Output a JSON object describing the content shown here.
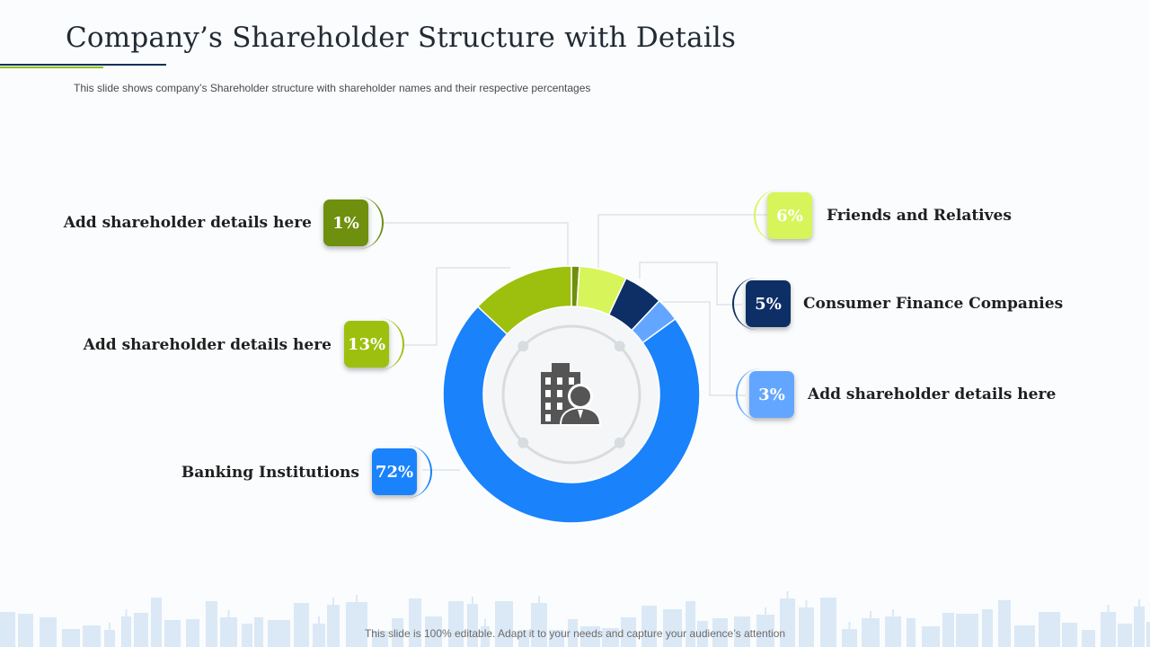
{
  "page": {
    "title": "Company’s Shareholder Structure with Details",
    "subtitle": "This slide shows company’s Shareholder  structure with shareholder names and their respective percentages",
    "footer": "This slide is 100% editable. Adapt it to your needs and capture your audience’s attention"
  },
  "icons": {
    "center": "building-person-icon",
    "background": "city-skyline"
  },
  "colors": {
    "title": "#222a33",
    "accent_dark": "#0f2f5c",
    "accent_green": "#8fbf1a",
    "donut_inner": "#f4f6f8",
    "ring": "#d9dcdf",
    "icon": "#555555",
    "skyline": "#dbe8f6"
  },
  "chart_data": {
    "type": "pie",
    "style": "donut",
    "unit": "%",
    "slices": [
      {
        "id": "s1",
        "label": "Add shareholder details here",
        "value": 1,
        "display": "1%",
        "color": "#6f8f0f",
        "text_color": "#ffffff"
      },
      {
        "id": "s2",
        "label": "Friends and Relatives",
        "value": 6,
        "display": "6%",
        "color": "#d7f55a",
        "text_color": "#ffffff"
      },
      {
        "id": "s3",
        "label": "Consumer Finance Companies",
        "value": 5,
        "display": "5%",
        "color": "#0d2f66",
        "text_color": "#ffffff"
      },
      {
        "id": "s4",
        "label": "Add shareholder details here",
        "value": 3,
        "display": "3%",
        "color": "#63a6ff",
        "text_color": "#ffffff"
      },
      {
        "id": "s5",
        "label": "Banking Institutions",
        "value": 72,
        "display": "72%",
        "color": "#1a82fb",
        "text_color": "#ffffff"
      },
      {
        "id": "s6",
        "label": "Add shareholder details here",
        "value": 13,
        "display": "13%",
        "color": "#9dc00e",
        "text_color": "#ffffff"
      }
    ]
  }
}
